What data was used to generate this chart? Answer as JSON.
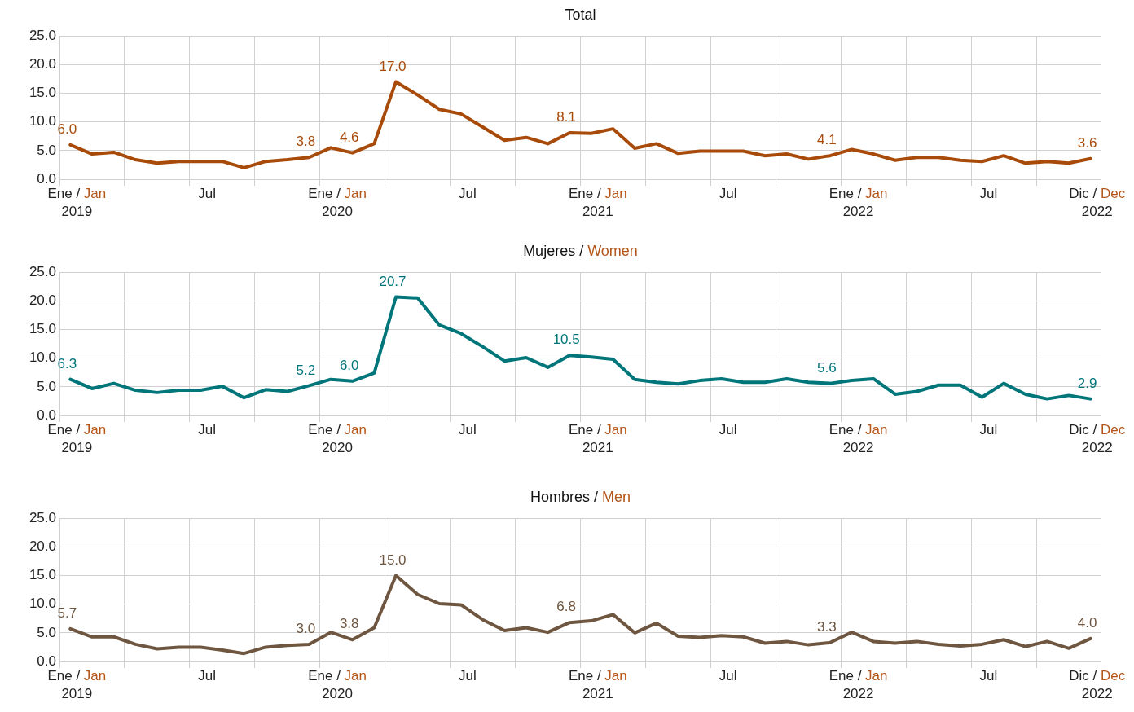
{
  "chart_data": [
    {
      "type": "line",
      "title": "Total",
      "categories": [
        "Ene / Jan\n2019",
        null,
        null,
        null,
        null,
        null,
        "Jul",
        null,
        null,
        null,
        null,
        null,
        "Ene / Jan\n2020",
        null,
        null,
        null,
        null,
        null,
        "Jul",
        null,
        null,
        null,
        null,
        null,
        "Ene / Jan\n2021",
        null,
        null,
        null,
        null,
        null,
        "Jul",
        null,
        null,
        null,
        null,
        null,
        "Ene / Jan\n2022",
        null,
        null,
        null,
        null,
        null,
        "Jul",
        null,
        null,
        null,
        null,
        "Dic / Dec\n2022"
      ],
      "series": [
        {
          "color": "#a84b0a",
          "values": [
            6.0,
            4.4,
            4.7,
            3.4,
            2.8,
            3.1,
            3.1,
            3.1,
            2.0,
            3.1,
            3.4,
            3.8,
            5.5,
            4.6,
            6.2,
            17.0,
            14.7,
            12.2,
            11.4,
            9.1,
            6.8,
            7.3,
            6.2,
            8.1,
            8.0,
            8.8,
            5.4,
            6.2,
            4.5,
            4.9,
            4.9,
            4.9,
            4.1,
            4.4,
            3.5,
            4.1,
            5.2,
            4.4,
            3.3,
            3.8,
            3.8,
            3.3,
            3.1,
            4.1,
            2.8,
            3.1,
            2.8,
            3.6
          ],
          "value_labels": [
            "6.0",
            null,
            null,
            null,
            null,
            null,
            null,
            null,
            null,
            null,
            null,
            "3.8",
            null,
            "4.6",
            null,
            "17.0",
            null,
            null,
            null,
            null,
            null,
            null,
            null,
            "8.1",
            null,
            null,
            null,
            null,
            null,
            null,
            null,
            null,
            null,
            null,
            null,
            "4.1",
            null,
            null,
            null,
            null,
            null,
            null,
            null,
            null,
            null,
            null,
            null,
            "3.6"
          ]
        }
      ],
      "ylim": [
        0,
        25
      ],
      "yticks": [
        {
          "value": 0,
          "label": "0.0"
        },
        {
          "value": 5,
          "label": "5.0"
        },
        {
          "value": 10,
          "label": "10.0"
        },
        {
          "value": 15,
          "label": "15.0"
        },
        {
          "value": 20,
          "label": "20.0"
        },
        {
          "value": 25,
          "label": "25.0"
        }
      ],
      "grid": true,
      "marker": "none"
    },
    {
      "type": "line",
      "title": "Mujeres / Women",
      "categories": [
        "Ene / Jan\n2019",
        null,
        null,
        null,
        null,
        null,
        "Jul",
        null,
        null,
        null,
        null,
        null,
        "Ene / Jan\n2020",
        null,
        null,
        null,
        null,
        null,
        "Jul",
        null,
        null,
        null,
        null,
        null,
        "Ene / Jan\n2021",
        null,
        null,
        null,
        null,
        null,
        "Jul",
        null,
        null,
        null,
        null,
        null,
        "Ene / Jan\n2022",
        null,
        null,
        null,
        null,
        null,
        "Jul",
        null,
        null,
        null,
        null,
        "Dic / Dec\n2022"
      ],
      "series": [
        {
          "color": "#00757a",
          "values": [
            6.3,
            4.7,
            5.6,
            4.4,
            4.0,
            4.4,
            4.4,
            5.1,
            3.1,
            4.5,
            4.2,
            5.2,
            6.3,
            6.0,
            7.4,
            20.7,
            20.5,
            15.8,
            14.3,
            12.0,
            9.5,
            10.1,
            8.4,
            10.5,
            10.2,
            9.8,
            6.3,
            5.8,
            5.5,
            6.1,
            6.4,
            5.8,
            5.8,
            6.4,
            5.8,
            5.6,
            6.1,
            6.4,
            3.7,
            4.2,
            5.3,
            5.3,
            3.2,
            5.6,
            3.7,
            2.9,
            3.5,
            2.9
          ],
          "value_labels": [
            "6.3",
            null,
            null,
            null,
            null,
            null,
            null,
            null,
            null,
            null,
            null,
            "5.2",
            null,
            "6.0",
            null,
            "20.7",
            null,
            null,
            null,
            null,
            null,
            null,
            null,
            "10.5",
            null,
            null,
            null,
            null,
            null,
            null,
            null,
            null,
            null,
            null,
            null,
            "5.6",
            null,
            null,
            null,
            null,
            null,
            null,
            null,
            null,
            null,
            null,
            null,
            "2.9"
          ]
        }
      ],
      "ylim": [
        0,
        25
      ],
      "yticks": [
        {
          "value": 0,
          "label": "0.0"
        },
        {
          "value": 5,
          "label": "5.0"
        },
        {
          "value": 10,
          "label": "10.0"
        },
        {
          "value": 15,
          "label": "15.0"
        },
        {
          "value": 20,
          "label": "20.0"
        },
        {
          "value": 25,
          "label": "25.0"
        }
      ],
      "grid": true,
      "marker": "none"
    },
    {
      "type": "line",
      "title": "Hombres / Men",
      "categories": [
        "Ene / Jan\n2019",
        null,
        null,
        null,
        null,
        null,
        "Jul",
        null,
        null,
        null,
        null,
        null,
        "Ene / Jan\n2020",
        null,
        null,
        null,
        null,
        null,
        "Jul",
        null,
        null,
        null,
        null,
        null,
        "Ene / Jan\n2021",
        null,
        null,
        null,
        null,
        null,
        "Jul",
        null,
        null,
        null,
        null,
        null,
        "Ene / Jan\n2022",
        null,
        null,
        null,
        null,
        null,
        "Jul",
        null,
        null,
        null,
        null,
        "Dic / Dec\n2022"
      ],
      "series": [
        {
          "color": "#6e5640",
          "values": [
            5.7,
            4.3,
            4.3,
            3.0,
            2.2,
            2.5,
            2.5,
            2.0,
            1.4,
            2.5,
            2.8,
            3.0,
            5.1,
            3.8,
            5.9,
            15.0,
            11.7,
            10.1,
            9.9,
            7.3,
            5.4,
            5.9,
            5.1,
            6.8,
            7.1,
            8.2,
            5.0,
            6.7,
            4.4,
            4.2,
            4.5,
            4.3,
            3.2,
            3.5,
            2.9,
            3.3,
            5.1,
            3.5,
            3.2,
            3.5,
            3.0,
            2.7,
            3.0,
            3.8,
            2.6,
            3.5,
            2.3,
            4.0
          ],
          "value_labels": [
            "5.7",
            null,
            null,
            null,
            null,
            null,
            null,
            null,
            null,
            null,
            null,
            "3.0",
            null,
            "3.8",
            null,
            "15.0",
            null,
            null,
            null,
            null,
            null,
            null,
            null,
            "6.8",
            null,
            null,
            null,
            null,
            null,
            null,
            null,
            null,
            null,
            null,
            null,
            "3.3",
            null,
            null,
            null,
            null,
            null,
            null,
            null,
            null,
            null,
            null,
            null,
            "4.0"
          ]
        }
      ],
      "ylim": [
        0,
        25
      ],
      "yticks": [
        {
          "value": 0,
          "label": "0.0"
        },
        {
          "value": 5,
          "label": "5.0"
        },
        {
          "value": 10,
          "label": "10.0"
        },
        {
          "value": 15,
          "label": "15.0"
        },
        {
          "value": 20,
          "label": "20.0"
        },
        {
          "value": 25,
          "label": "25.0"
        }
      ],
      "grid": true,
      "marker": "none"
    }
  ]
}
